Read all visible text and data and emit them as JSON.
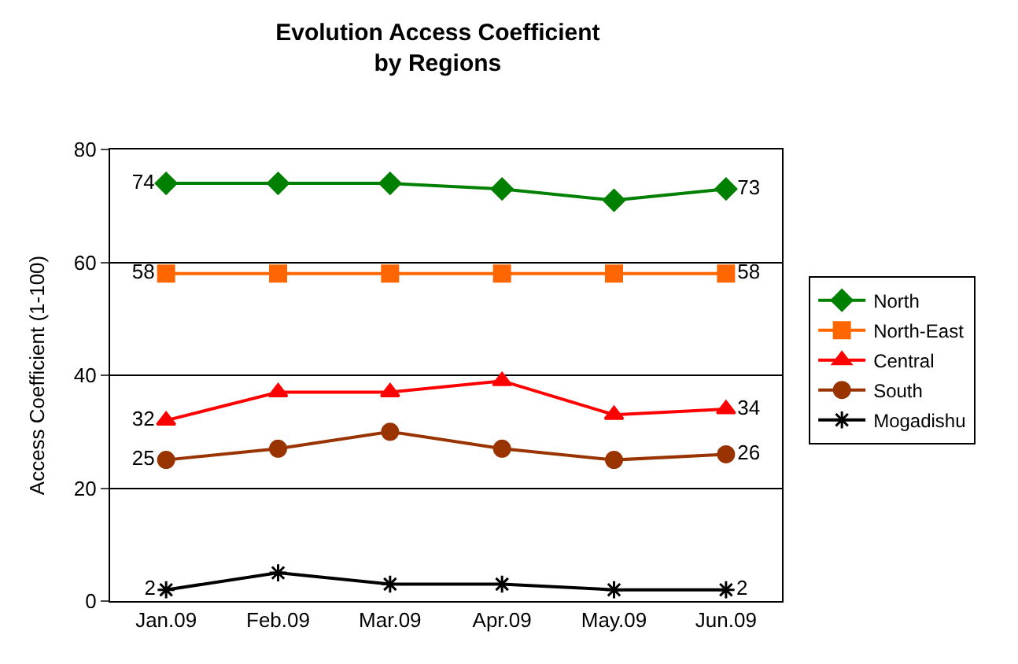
{
  "chart_data": {
    "type": "line",
    "title": "Evolution Access Coefficient\nby Regions",
    "ylabel": "Access Coefficient (1-100)",
    "categories": [
      "Jan.09",
      "Feb.09",
      "Mar.09",
      "Apr.09",
      "May.09",
      "Jun.09"
    ],
    "ylim": [
      0,
      80
    ],
    "yticks": [
      0,
      20,
      40,
      60,
      80
    ],
    "grid": "y",
    "legend": "right",
    "series": [
      {
        "name": "North",
        "color": "#008000",
        "marker": "diamond",
        "values": [
          74,
          74,
          74,
          73,
          71,
          73
        ],
        "value_labels": [
          "74",
          null,
          null,
          null,
          null,
          "73"
        ]
      },
      {
        "name": "North-East",
        "color": "#ff6600",
        "marker": "square",
        "values": [
          58,
          58,
          58,
          58,
          58,
          58
        ],
        "value_labels": [
          "58",
          null,
          null,
          null,
          null,
          "58"
        ]
      },
      {
        "name": "Central",
        "color": "#ff0000",
        "marker": "triangle",
        "values": [
          32,
          37,
          37,
          39,
          33,
          34
        ],
        "value_labels": [
          "32",
          null,
          null,
          null,
          null,
          "34"
        ]
      },
      {
        "name": "South",
        "color": "#993300",
        "marker": "circle",
        "values": [
          25,
          27,
          30,
          27,
          25,
          26
        ],
        "value_labels": [
          "25",
          null,
          null,
          null,
          null,
          "26"
        ]
      },
      {
        "name": "Mogadishu",
        "color": "#000000",
        "marker": "cross",
        "values": [
          2,
          5,
          3,
          3,
          2,
          2
        ],
        "value_labels": [
          "2",
          null,
          null,
          null,
          null,
          "2"
        ]
      }
    ]
  }
}
